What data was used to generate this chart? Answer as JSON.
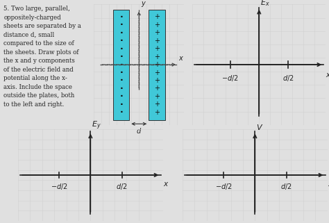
{
  "background_color": "#e0e0e0",
  "grid_color": "#f0f0f0",
  "grid_line_color": "#d0d0d0",
  "text_color": "#222222",
  "plate_color": "#40c8d8",
  "plate_edge_color": "#333333",
  "axes_color": "#222222",
  "tick_color": "#333333",
  "text_problem": "5. Two large, parallel,\noppositely-charged\nsheets are separated by a\ndistance d, small\ncompared to the size of\nthe sheets. Draw plots of\nthe x and y components\nof the electric field and\npotential along the x-\naxis. Include the space\noutside the plates, both\nto the left and right.",
  "label_Ex": "E_x",
  "label_Ey": "E_y",
  "label_V": "V",
  "label_x": "x",
  "label_y": "y",
  "label_d": "d",
  "tick_neg": "-d/2",
  "tick_pos": "d/2",
  "fig_width": 4.74,
  "fig_height": 3.21,
  "dpi": 100
}
